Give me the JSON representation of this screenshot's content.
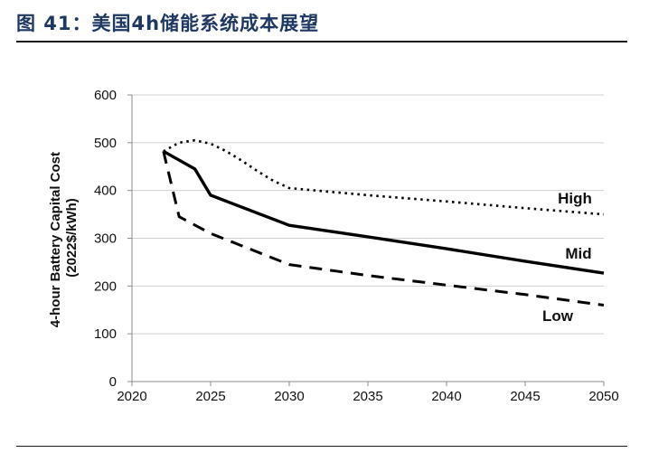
{
  "header": {
    "title": "图 41：美国4h储能系统成本展望"
  },
  "chart_data": {
    "type": "line",
    "title": "图 41：美国4h储能系统成本展望",
    "xlabel": "",
    "ylabel_line1": "4-hour Battery Capital Cost",
    "ylabel_line2": "(2022$/kWh)",
    "xlim": [
      2020,
      2050
    ],
    "ylim": [
      0,
      600
    ],
    "xticks": [
      2020,
      2025,
      2030,
      2035,
      2040,
      2045,
      2050
    ],
    "yticks": [
      0,
      100,
      200,
      300,
      400,
      500,
      600
    ],
    "grid": "horizontal",
    "legend": "inline labels near line ends",
    "series": [
      {
        "name": "High",
        "style": "dotted",
        "x": [
          2022,
          2023,
          2024,
          2025,
          2026,
          2027,
          2028,
          2029,
          2030,
          2035,
          2040,
          2045,
          2050
        ],
        "values": [
          482,
          500,
          505,
          498,
          482,
          462,
          440,
          420,
          405,
          390,
          377,
          363,
          350
        ]
      },
      {
        "name": "Mid",
        "style": "solid",
        "x": [
          2022,
          2024,
          2025,
          2030,
          2035,
          2040,
          2045,
          2050
        ],
        "values": [
          482,
          445,
          390,
          327,
          303,
          278,
          252,
          227
        ]
      },
      {
        "name": "Low",
        "style": "dashed",
        "x": [
          2022,
          2023,
          2025,
          2030,
          2035,
          2040,
          2045,
          2050
        ],
        "values": [
          482,
          345,
          310,
          245,
          222,
          202,
          182,
          160
        ]
      }
    ]
  }
}
